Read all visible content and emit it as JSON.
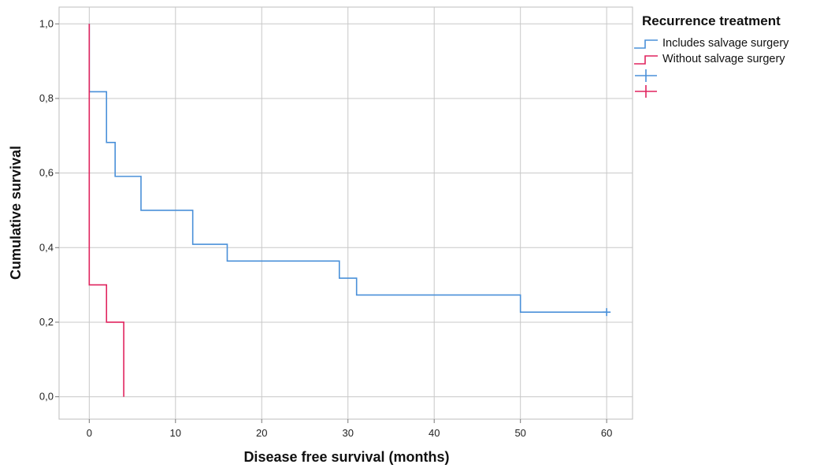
{
  "chart_data": {
    "type": "line",
    "subtype": "kaplan-meier-step",
    "title": "",
    "xlabel": "Disease free survival (months)",
    "ylabel": "Cumulative survival",
    "xlim": [
      -3.5,
      63
    ],
    "ylim": [
      -0.06,
      1.045
    ],
    "x_ticks": [
      0,
      10,
      20,
      30,
      40,
      50,
      60
    ],
    "x_tick_labels": [
      "0",
      "10",
      "20",
      "30",
      "40",
      "50",
      "60"
    ],
    "y_ticks": [
      0,
      0.2,
      0.4,
      0.6,
      0.8,
      1.0
    ],
    "y_tick_labels": [
      "0,0",
      "0,2",
      "0,4",
      "0,6",
      "0,8",
      "1,0"
    ],
    "grid": true,
    "legend": {
      "title": "Recurrence treatment",
      "placement": "top-right outside",
      "entries": [
        {
          "label": "Includes salvage surgery",
          "kind": "step",
          "color": "#4a90d9"
        },
        {
          "label": "Without salvage surgery",
          "kind": "step",
          "color": "#e0245e"
        },
        {
          "label": "",
          "kind": "censor",
          "color": "#4a90d9"
        },
        {
          "label": "",
          "kind": "censor",
          "color": "#e0245e"
        }
      ]
    },
    "series": [
      {
        "name": "Includes salvage surgery",
        "color": "#4a90d9",
        "steps": [
          {
            "x": 0,
            "y": 1.0
          },
          {
            "x": 0,
            "y": 0.818
          },
          {
            "x": 2,
            "y": 0.682
          },
          {
            "x": 3,
            "y": 0.591
          },
          {
            "x": 6,
            "y": 0.5
          },
          {
            "x": 12,
            "y": 0.409
          },
          {
            "x": 16,
            "y": 0.364
          },
          {
            "x": 29,
            "y": 0.318
          },
          {
            "x": 31,
            "y": 0.273
          },
          {
            "x": 50,
            "y": 0.227
          }
        ],
        "end_x": 60,
        "censored": [
          {
            "x": 60,
            "y": 0.227
          }
        ]
      },
      {
        "name": "Without salvage surgery",
        "color": "#e0245e",
        "steps": [
          {
            "x": 0,
            "y": 1.0
          },
          {
            "x": 0,
            "y": 0.3
          },
          {
            "x": 2,
            "y": 0.2
          },
          {
            "x": 4,
            "y": 0.0
          }
        ],
        "end_x": 4,
        "censored": []
      }
    ]
  }
}
